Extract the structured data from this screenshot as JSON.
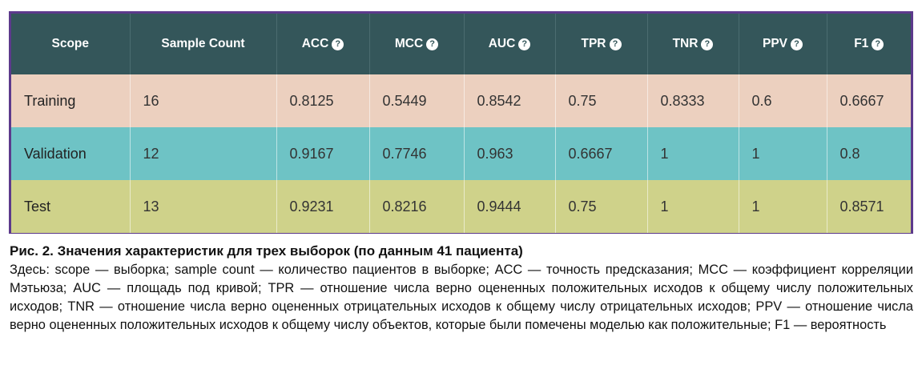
{
  "table": {
    "columns": [
      {
        "label": "Scope",
        "help": false
      },
      {
        "label": "Sample Count",
        "help": false
      },
      {
        "label": "ACC",
        "help": true
      },
      {
        "label": "MCC",
        "help": true
      },
      {
        "label": "AUC",
        "help": true
      },
      {
        "label": "TPR",
        "help": true
      },
      {
        "label": "TNR",
        "help": true
      },
      {
        "label": "PPV",
        "help": true
      },
      {
        "label": "F1",
        "help": true
      }
    ],
    "help_glyph": "?",
    "rows": [
      {
        "color": "#ecd0bf",
        "cells": [
          "Training",
          "16",
          "0.8125",
          "0.5449",
          "0.8542",
          "0.75",
          "0.8333",
          "0.6",
          "0.6667"
        ]
      },
      {
        "color": "#6ec3c5",
        "cells": [
          "Validation",
          "12",
          "0.9167",
          "0.7746",
          "0.963",
          "0.6667",
          "1",
          "1",
          "0.8"
        ]
      },
      {
        "color": "#cfd28a",
        "cells": [
          "Test",
          "13",
          "0.9231",
          "0.8216",
          "0.9444",
          "0.75",
          "1",
          "1",
          "0.8571"
        ]
      }
    ],
    "header_color": "#34565a",
    "frame_color": "#5c3a8c"
  },
  "caption": {
    "title": "Рис. 2. Значения характеристик для трех выборок (по данным 41 пациента)",
    "body": "Здесь: scope — выборка; sample count — количество пациентов в выборке; ACC — точность предсказания; MCC — коэф­фициент корреляции Мэтьюза; AUC — площадь под кривой; TPR — отношение числа верно оцененных положительных исходов к общему числу положительных исходов; TNR — отношение числа верно оцененных отрицательных исходов к об­щему числу отрицательных исходов; PPV — отношение числа верно оцененных положительных исходов к общему числу объектов, которые были помечены моделью как положительные; F1 — вероятность"
  }
}
